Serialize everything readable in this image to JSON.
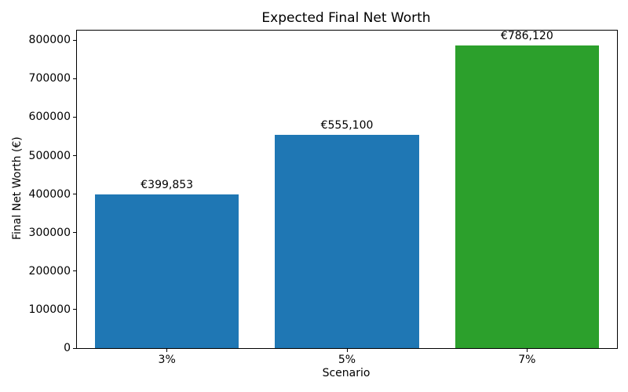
{
  "chart_data": {
    "type": "bar",
    "title": "Expected Final Net Worth",
    "xlabel": "Scenario",
    "ylabel": "Final Net Worth (€)",
    "categories": [
      "3%",
      "5%",
      "7%"
    ],
    "values": [
      399853,
      555100,
      786120
    ],
    "bar_labels": [
      "€399,853",
      "€555,100",
      "€786,120"
    ],
    "bar_colors": [
      "#1f77b4",
      "#1f77b4",
      "#2ca02c"
    ],
    "ylim": [
      0,
      825000
    ],
    "yticks": [
      0,
      100000,
      200000,
      300000,
      400000,
      500000,
      600000,
      700000,
      800000
    ],
    "ytick_labels": [
      "0",
      "100000",
      "200000",
      "300000",
      "400000",
      "500000",
      "600000",
      "700000",
      "800000"
    ],
    "bar_width_fraction": 0.8,
    "grid": false,
    "legend_position": "none",
    "axis_color": "#000000",
    "background_color": "#ffffff"
  }
}
